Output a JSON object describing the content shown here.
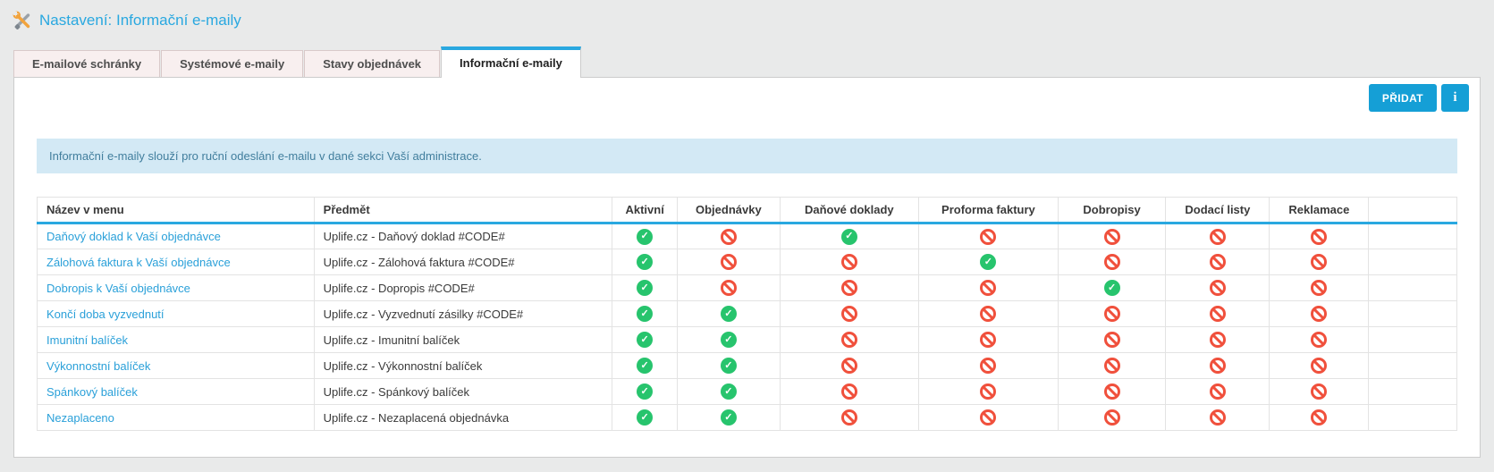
{
  "page": {
    "title": "Nastavení: Informační e-maily"
  },
  "tabs": [
    {
      "label": "E-mailové schránky",
      "active": false
    },
    {
      "label": "Systémové e-maily",
      "active": false
    },
    {
      "label": "Stavy objednávek",
      "active": false
    },
    {
      "label": "Informační e-maily",
      "active": true
    }
  ],
  "toolbar": {
    "add_label": "PŘIDAT",
    "info_label": "i"
  },
  "info_box": {
    "text": "Informační e-maily slouží pro ruční odeslání e-mailu v dané sekci Vaší administrace."
  },
  "table": {
    "columns": [
      "Název v menu",
      "Předmět",
      "Aktivní",
      "Objednávky",
      "Daňové doklady",
      "Proforma faktury",
      "Dobropisy",
      "Dodací listy",
      "Reklamace",
      ""
    ],
    "rows": [
      {
        "name": "Daňový doklad k Vaší objednávce",
        "subject": "Uplife.cz - Daňový doklad #CODE#",
        "statuses": [
          "yes",
          "no",
          "yes",
          "no",
          "no",
          "no",
          "no"
        ]
      },
      {
        "name": "Zálohová faktura k Vaší objednávce",
        "subject": "Uplife.cz - Zálohová faktura #CODE#",
        "statuses": [
          "yes",
          "no",
          "no",
          "yes",
          "no",
          "no",
          "no"
        ]
      },
      {
        "name": "Dobropis k Vaší objednávce",
        "subject": "Uplife.cz - Dopropis #CODE#",
        "statuses": [
          "yes",
          "no",
          "no",
          "no",
          "yes",
          "no",
          "no"
        ]
      },
      {
        "name": "Končí doba vyzvednutí",
        "subject": "Uplife.cz - Vyzvednutí zásilky #CODE#",
        "statuses": [
          "yes",
          "yes",
          "no",
          "no",
          "no",
          "no",
          "no"
        ]
      },
      {
        "name": "Imunitní balíček",
        "subject": "Uplife.cz - Imunitní balíček",
        "statuses": [
          "yes",
          "yes",
          "no",
          "no",
          "no",
          "no",
          "no"
        ]
      },
      {
        "name": "Výkonnostní balíček",
        "subject": "Uplife.cz - Výkonnostní balíček",
        "statuses": [
          "yes",
          "yes",
          "no",
          "no",
          "no",
          "no",
          "no"
        ]
      },
      {
        "name": "Spánkový balíček",
        "subject": "Uplife.cz - Spánkový balíček",
        "statuses": [
          "yes",
          "yes",
          "no",
          "no",
          "no",
          "no",
          "no"
        ]
      },
      {
        "name": "Nezaplaceno",
        "subject": "Uplife.cz - Nezaplacená objednávka",
        "statuses": [
          "yes",
          "yes",
          "no",
          "no",
          "no",
          "no",
          "no"
        ]
      }
    ]
  },
  "colors": {
    "accent_blue": "#29a8e0",
    "button_blue": "#159fd6",
    "link_blue": "#2aa0d9",
    "success_green": "#27c46d",
    "denied_red": "#f0503c",
    "info_box_bg": "#d3e9f5",
    "info_box_text": "#417e9d",
    "tab_inactive_bg": "#f8efef",
    "page_bg": "#e9eaea"
  }
}
